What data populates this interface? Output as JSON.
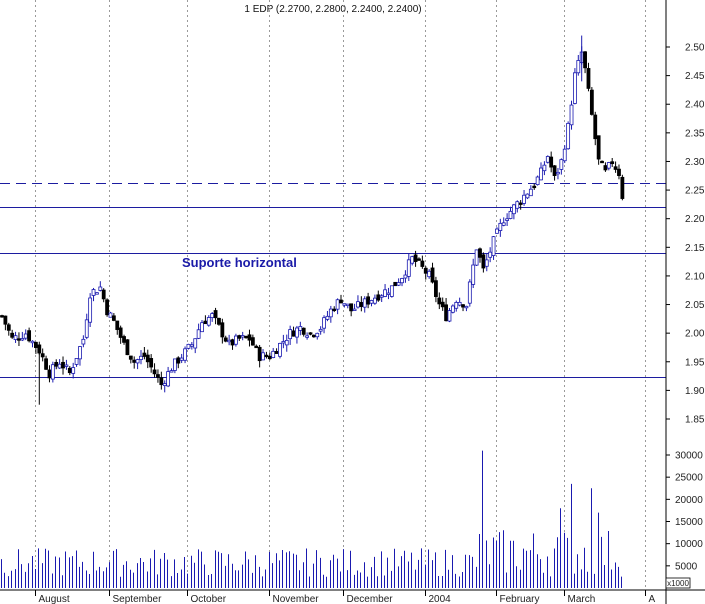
{
  "chart_data": {
    "type": "candlestick",
    "title": "1 EDP (2.2700, 2.2800, 2.2400, 2.2400)",
    "price_axis": {
      "ylim": [
        1.8,
        2.54
      ],
      "ticks": [
        "2.50",
        "2.45",
        "2.40",
        "2.35",
        "2.30",
        "2.25",
        "2.20",
        "2.15",
        "2.10",
        "2.05",
        "2.00",
        "1.95",
        "1.90",
        "1.85"
      ]
    },
    "volume_axis": {
      "ylim": [
        0,
        33000
      ],
      "ticks": [
        "30000",
        "25000",
        "20000",
        "15000",
        "10000",
        "5000"
      ],
      "unit_label": "x1000"
    },
    "months": [
      "August",
      "September",
      "October",
      "November",
      "December",
      "2004",
      "February",
      "March",
      "A"
    ],
    "horizontal_lines": [
      {
        "price": 2.262,
        "style": "dashed"
      },
      {
        "price": 2.22,
        "style": "solid"
      },
      {
        "price": 2.14,
        "style": "solid"
      },
      {
        "price": 1.923,
        "style": "solid"
      }
    ],
    "annotation": {
      "text": "Suporte horizontal",
      "price": 2.125
    },
    "price_anchors": [
      [
        0,
        2.03
      ],
      [
        3,
        1.99
      ],
      [
        7,
        2.0
      ],
      [
        11,
        1.97
      ],
      [
        14,
        1.93
      ],
      [
        17,
        1.95
      ],
      [
        20,
        1.93
      ],
      [
        24,
        1.99
      ],
      [
        26,
        2.07
      ],
      [
        29,
        2.08
      ],
      [
        31,
        2.04
      ],
      [
        33,
        2.02
      ],
      [
        36,
        1.98
      ],
      [
        39,
        1.95
      ],
      [
        42,
        1.96
      ],
      [
        45,
        1.93
      ],
      [
        47,
        1.91
      ],
      [
        50,
        1.94
      ],
      [
        53,
        1.96
      ],
      [
        56,
        1.98
      ],
      [
        59,
        2.02
      ],
      [
        62,
        2.03
      ],
      [
        64,
        2.01
      ],
      [
        67,
        1.98
      ],
      [
        70,
        1.99
      ],
      [
        73,
        1.99
      ],
      [
        76,
        1.96
      ],
      [
        79,
        1.96
      ],
      [
        82,
        1.98
      ],
      [
        85,
        2.0
      ],
      [
        88,
        2.01
      ],
      [
        91,
        2.0
      ],
      [
        94,
        2.01
      ],
      [
        97,
        2.04
      ],
      [
        100,
        2.06
      ],
      [
        103,
        2.04
      ],
      [
        106,
        2.05
      ],
      [
        109,
        2.06
      ],
      [
        112,
        2.07
      ],
      [
        115,
        2.08
      ],
      [
        118,
        2.1
      ],
      [
        121,
        2.13
      ],
      [
        123,
        2.12
      ],
      [
        126,
        2.1
      ],
      [
        129,
        2.05
      ],
      [
        131,
        2.03
      ],
      [
        134,
        2.06
      ],
      [
        137,
        2.05
      ],
      [
        140,
        2.15
      ],
      [
        142,
        2.11
      ],
      [
        145,
        2.16
      ],
      [
        148,
        2.2
      ],
      [
        151,
        2.22
      ],
      [
        154,
        2.24
      ],
      [
        157,
        2.26
      ],
      [
        159,
        2.28
      ],
      [
        161,
        2.31
      ],
      [
        163,
        2.27
      ],
      [
        165,
        2.3
      ],
      [
        167,
        2.36
      ],
      [
        169,
        2.45
      ],
      [
        171,
        2.49
      ],
      [
        172,
        2.46
      ],
      [
        174,
        2.38
      ],
      [
        176,
        2.3
      ],
      [
        178,
        2.28
      ],
      [
        180,
        2.3
      ],
      [
        182,
        2.28
      ],
      [
        183,
        2.24
      ]
    ],
    "volume_peaks": [
      {
        "bar": 142,
        "value": 31000
      },
      {
        "bar": 165,
        "value": 18000
      },
      {
        "bar": 168,
        "value": 23500
      },
      {
        "bar": 174,
        "value": 22500
      },
      {
        "bar": 176,
        "value": 17000
      }
    ],
    "bar_count": 184
  }
}
